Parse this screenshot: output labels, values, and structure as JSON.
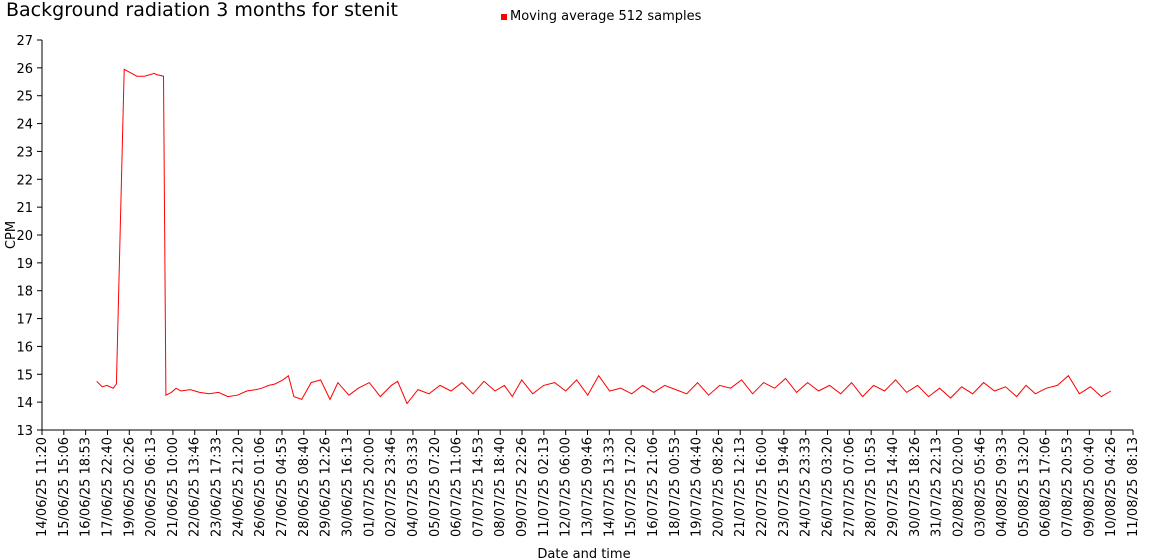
{
  "chart_data": {
    "type": "line",
    "title": "Background radiation 3 months for stenit",
    "xlabel": "Date and time",
    "ylabel": "CPM",
    "ylim": [
      13,
      27
    ],
    "yticks": [
      13,
      14,
      15,
      16,
      17,
      18,
      19,
      20,
      21,
      22,
      23,
      24,
      25,
      26,
      27
    ],
    "xticks": [
      "14/06/25 11:20",
      "15/06/25 15:06",
      "16/06/25 18:53",
      "17/06/25 22:40",
      "19/06/25 02:26",
      "20/06/25 06:13",
      "21/06/25 10:00",
      "22/06/25 13:46",
      "23/06/25 17:33",
      "24/06/25 21:20",
      "26/06/25 01:06",
      "27/06/25 04:53",
      "28/06/25 08:40",
      "29/06/25 12:26",
      "30/06/25 16:13",
      "01/07/25 20:00",
      "02/07/25 23:46",
      "04/07/25 03:33",
      "05/07/25 07:20",
      "06/07/25 11:06",
      "07/07/25 14:53",
      "08/07/25 18:40",
      "09/07/25 22:26",
      "11/07/25 02:13",
      "12/07/25 06:00",
      "13/07/25 09:46",
      "14/07/25 13:33",
      "15/07/25 17:20",
      "16/07/25 21:06",
      "18/07/25 00:53",
      "19/07/25 04:40",
      "20/07/25 08:26",
      "21/07/25 12:13",
      "22/07/25 16:00",
      "23/07/25 19:46",
      "24/07/25 23:33",
      "26/07/25 03:20",
      "27/07/25 07:06",
      "28/07/25 10:53",
      "29/07/25 14:40",
      "30/07/25 18:26",
      "31/07/25 22:13",
      "02/08/25 02:00",
      "03/08/25 05:46",
      "04/08/25 09:33",
      "05/08/25 13:20",
      "06/08/25 17:06",
      "07/08/25 20:53",
      "09/08/25 00:40",
      "10/08/25 04:26",
      "11/08/25 08:13"
    ],
    "legend_position": "top-center",
    "grid": false,
    "series": [
      {
        "name": "Moving average 512 samples",
        "color": "#ff0000",
        "x": [
          "17/06/25 09:00",
          "17/06/25 16:00",
          "17/06/25 22:00",
          "18/06/25 06:00",
          "18/06/25 10:00",
          "18/06/25 20:00",
          "19/06/25 12:00",
          "19/06/25 22:00",
          "20/06/25 10:00",
          "20/06/25 14:00",
          "20/06/25 22:00",
          "21/06/25 01:00",
          "21/06/25 08:00",
          "21/06/25 14:00",
          "21/06/25 20:00",
          "22/06/25 08:00",
          "22/06/25 20:00",
          "23/06/25 08:00",
          "23/06/25 20:00",
          "24/06/25 08:00",
          "24/06/25 20:00",
          "25/06/25 08:00",
          "25/06/25 20:00",
          "26/06/25 03:00",
          "26/06/25 12:00",
          "26/06/25 20:00",
          "27/06/25 06:00",
          "27/06/25 13:00",
          "27/06/25 20:00",
          "28/06/25 06:00",
          "28/06/25 18:00",
          "29/06/25 06:00",
          "29/06/25 18:00",
          "30/06/25 04:00",
          "30/06/25 18:00",
          "01/07/25 06:00",
          "01/07/25 20:00",
          "02/07/25 10:00",
          "03/07/25 00:00",
          "03/07/25 08:00",
          "03/07/25 20:00",
          "04/07/25 10:00",
          "05/07/25 00:00",
          "05/07/25 14:00",
          "06/07/25 04:00",
          "06/07/25 18:00",
          "07/07/25 08:00",
          "07/07/25 22:00",
          "08/07/25 12:00",
          "09/07/25 00:00",
          "09/07/25 10:00",
          "09/07/25 22:00",
          "10/07/25 12:00",
          "11/07/25 02:00",
          "11/07/25 16:00",
          "12/07/25 06:00",
          "12/07/25 20:00",
          "13/07/25 10:00",
          "14/07/25 00:00",
          "14/07/25 14:00",
          "15/07/25 04:00",
          "15/07/25 18:00",
          "16/07/25 08:00",
          "16/07/25 22:00",
          "17/07/25 12:00",
          "18/07/25 02:00",
          "18/07/25 16:00",
          "19/07/25 06:00",
          "19/07/25 20:00",
          "20/07/25 10:00",
          "21/07/25 00:00",
          "21/07/25 14:00",
          "22/07/25 04:00",
          "22/07/25 18:00",
          "23/07/25 08:00",
          "23/07/25 22:00",
          "24/07/25 12:00",
          "25/07/25 02:00",
          "25/07/25 16:00",
          "26/07/25 06:00",
          "26/07/25 20:00",
          "27/07/25 10:00",
          "28/07/25 00:00",
          "28/07/25 14:00",
          "29/07/25 04:00",
          "29/07/25 18:00",
          "30/07/25 08:00",
          "30/07/25 22:00",
          "31/07/25 12:00",
          "01/08/25 02:00",
          "01/08/25 16:00",
          "02/08/25 06:00",
          "02/08/25 20:00",
          "03/08/25 10:00",
          "04/08/25 00:00",
          "04/08/25 14:00",
          "05/08/25 04:00",
          "05/08/25 16:00",
          "06/08/25 04:00",
          "06/08/25 18:00",
          "07/08/25 08:00",
          "07/08/25 22:00",
          "08/08/25 12:00",
          "09/08/25 02:00",
          "09/08/25 16:00",
          "10/08/25 04:00"
        ],
        "y": [
          14.75,
          14.55,
          14.6,
          14.5,
          14.65,
          25.95,
          25.7,
          25.7,
          25.8,
          25.75,
          25.7,
          14.25,
          14.35,
          14.5,
          14.4,
          14.45,
          14.35,
          14.3,
          14.35,
          14.2,
          14.25,
          14.4,
          14.45,
          14.5,
          14.6,
          14.65,
          14.8,
          14.95,
          14.2,
          14.1,
          14.7,
          14.8,
          14.1,
          14.7,
          14.25,
          14.5,
          14.7,
          14.2,
          14.6,
          14.75,
          13.95,
          14.45,
          14.3,
          14.6,
          14.4,
          14.7,
          14.3,
          14.75,
          14.4,
          14.6,
          14.2,
          14.8,
          14.3,
          14.6,
          14.7,
          14.4,
          14.8,
          14.25,
          14.95,
          14.4,
          14.5,
          14.3,
          14.6,
          14.35,
          14.6,
          14.45,
          14.3,
          14.7,
          14.25,
          14.6,
          14.5,
          14.8,
          14.3,
          14.7,
          14.5,
          14.85,
          14.35,
          14.7,
          14.4,
          14.6,
          14.3,
          14.7,
          14.2,
          14.6,
          14.4,
          14.8,
          14.35,
          14.6,
          14.2,
          14.5,
          14.15,
          14.55,
          14.3,
          14.7,
          14.4,
          14.55,
          14.2,
          14.6,
          14.3,
          14.5,
          14.6,
          14.95,
          14.3,
          14.55,
          14.2,
          14.4
        ]
      }
    ]
  }
}
